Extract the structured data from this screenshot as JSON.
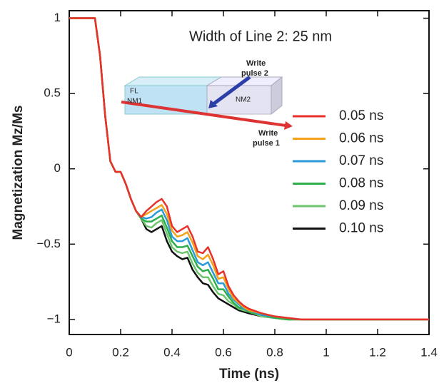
{
  "chart_data": {
    "type": "line",
    "annotation": "Width of Line 2: 25 nm",
    "x_label": "Time (ns)",
    "y_label": "Magnetization Mz/Ms",
    "xlim": [
      0,
      1.4
    ],
    "ylim": [
      -1.1,
      1.05
    ],
    "xticks": [
      0,
      0.2,
      0.4,
      0.6,
      0.8,
      1,
      1.2,
      1.4
    ],
    "yticks": [
      1,
      0.5,
      0,
      {
        "value": -0.5,
        "label": "−0.5"
      },
      {
        "value": -1,
        "label": "−1"
      }
    ],
    "inset": {
      "write_pulse_2": [
        "Write",
        "pulse 2"
      ],
      "write_pulse_1": [
        "Write",
        "pulse 1"
      ],
      "layers": [
        "FL",
        "NM1",
        "NM2"
      ]
    },
    "x": [
      0,
      0.05,
      0.1,
      0.12,
      0.14,
      0.16,
      0.18,
      0.2,
      0.22,
      0.24,
      0.26,
      0.28,
      0.3,
      0.32,
      0.34,
      0.36,
      0.38,
      0.4,
      0.42,
      0.44,
      0.46,
      0.48,
      0.5,
      0.52,
      0.54,
      0.56,
      0.58,
      0.6,
      0.62,
      0.64,
      0.66,
      0.68,
      0.7,
      0.75,
      0.8,
      0.85,
      0.9,
      1.0,
      1.1,
      1.2,
      1.4
    ],
    "series": [
      {
        "name": "0.05 ns",
        "color": "#e8312b",
        "values": [
          1,
          1,
          1,
          0.75,
          0.35,
          0.05,
          -0.02,
          -0.02,
          -0.1,
          -0.2,
          -0.28,
          -0.32,
          -0.28,
          -0.25,
          -0.22,
          -0.2,
          -0.25,
          -0.38,
          -0.42,
          -0.4,
          -0.38,
          -0.45,
          -0.55,
          -0.56,
          -0.52,
          -0.6,
          -0.7,
          -0.68,
          -0.78,
          -0.84,
          -0.88,
          -0.91,
          -0.93,
          -0.96,
          -0.98,
          -0.99,
          -1,
          -1,
          -1,
          -1,
          -1
        ]
      },
      {
        "name": "0.06 ns",
        "color": "#f5a21b",
        "values": [
          1,
          1,
          1,
          0.75,
          0.35,
          0.05,
          -0.02,
          -0.02,
          -0.1,
          -0.2,
          -0.28,
          -0.32,
          -0.3,
          -0.28,
          -0.26,
          -0.24,
          -0.3,
          -0.41,
          -0.45,
          -0.44,
          -0.42,
          -0.49,
          -0.58,
          -0.6,
          -0.57,
          -0.64,
          -0.73,
          -0.72,
          -0.8,
          -0.86,
          -0.89,
          -0.92,
          -0.94,
          -0.96,
          -0.98,
          -0.99,
          -1,
          -1,
          -1,
          -1,
          -1
        ]
      },
      {
        "name": "0.07 ns",
        "color": "#2a9ad8",
        "values": [
          1,
          1,
          1,
          0.75,
          0.35,
          0.05,
          -0.02,
          -0.02,
          -0.1,
          -0.2,
          -0.28,
          -0.32,
          -0.33,
          -0.32,
          -0.29,
          -0.27,
          -0.34,
          -0.45,
          -0.48,
          -0.48,
          -0.46,
          -0.54,
          -0.62,
          -0.64,
          -0.62,
          -0.69,
          -0.76,
          -0.76,
          -0.83,
          -0.87,
          -0.9,
          -0.93,
          -0.94,
          -0.97,
          -0.98,
          -0.99,
          -1,
          -1,
          -1,
          -1,
          -1
        ]
      },
      {
        "name": "0.08 ns",
        "color": "#2cae4a",
        "values": [
          1,
          1,
          1,
          0.75,
          0.35,
          0.05,
          -0.02,
          -0.02,
          -0.1,
          -0.2,
          -0.28,
          -0.33,
          -0.35,
          -0.35,
          -0.33,
          -0.31,
          -0.39,
          -0.48,
          -0.52,
          -0.52,
          -0.51,
          -0.58,
          -0.65,
          -0.68,
          -0.67,
          -0.73,
          -0.8,
          -0.8,
          -0.85,
          -0.89,
          -0.92,
          -0.93,
          -0.95,
          -0.97,
          -0.99,
          -1,
          -1,
          -1,
          -1,
          -1,
          -1
        ]
      },
      {
        "name": "0.09 ns",
        "color": "#6cc56c",
        "values": [
          1,
          1,
          1,
          0.75,
          0.35,
          0.05,
          -0.02,
          -0.02,
          -0.1,
          -0.2,
          -0.28,
          -0.33,
          -0.38,
          -0.39,
          -0.36,
          -0.34,
          -0.43,
          -0.52,
          -0.55,
          -0.56,
          -0.55,
          -0.63,
          -0.69,
          -0.72,
          -0.72,
          -0.78,
          -0.83,
          -0.84,
          -0.88,
          -0.9,
          -0.93,
          -0.94,
          -0.95,
          -0.98,
          -0.99,
          -1,
          -1,
          -1,
          -1,
          -1,
          -1
        ]
      },
      {
        "name": "0.10 ns",
        "color": "#111111",
        "values": [
          1,
          1,
          1,
          0.75,
          0.35,
          0.05,
          -0.02,
          -0.02,
          -0.1,
          -0.2,
          -0.28,
          -0.33,
          -0.4,
          -0.42,
          -0.4,
          -0.38,
          -0.48,
          -0.55,
          -0.58,
          -0.6,
          -0.59,
          -0.67,
          -0.72,
          -0.76,
          -0.77,
          -0.82,
          -0.86,
          -0.88,
          -0.9,
          -0.92,
          -0.94,
          -0.95,
          -0.96,
          -0.98,
          -0.99,
          -1,
          -1,
          -1,
          -1,
          -1,
          -1
        ]
      }
    ]
  }
}
